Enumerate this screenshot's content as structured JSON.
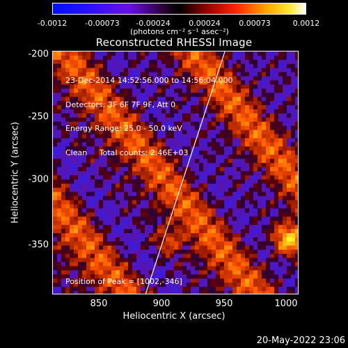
{
  "colorbar": {
    "ticks": [
      "-0.0012",
      "-0.00073",
      "-0.00024",
      "0.00024",
      "0.00073",
      "0.0012"
    ],
    "units": "(photons cm⁻² s⁻¹ asec⁻²)",
    "range": [
      -0.0012,
      0.0012
    ]
  },
  "title": "Reconstructed RHESSI Image",
  "info": {
    "time": "23-Dec-2014 14:52:56.000 to 14:56:04.000",
    "detectors": "Detectors: 3F 6F 7F 9F, Att 0",
    "energy": "Energy Range: 25.0 - 50.0 keV",
    "clean": "Clean     Total counts: 2.46E+03"
  },
  "peak": "Position of Peak = [1002,-346]",
  "footer_date": "20-May-2022 23:06",
  "chart_data": {
    "type": "heatmap",
    "title": "Reconstructed RHESSI Image",
    "xlabel": "Heliocentric X (arcsec)",
    "ylabel": "Heliocentric Y (arcsec)",
    "xlim": [
      818,
      1010
    ],
    "ylim": [
      -392,
      -197
    ],
    "xticks": [
      "850",
      "900",
      "950",
      "1000"
    ],
    "yticks": [
      "-200",
      "-250",
      "-300",
      "-350"
    ],
    "limb_line": {
      "x": [
        890,
        952
      ],
      "y": [
        -392,
        -197
      ]
    },
    "peak_position": [
      1002,
      -346
    ],
    "value_range": [
      -0.0012,
      0.0012
    ]
  }
}
